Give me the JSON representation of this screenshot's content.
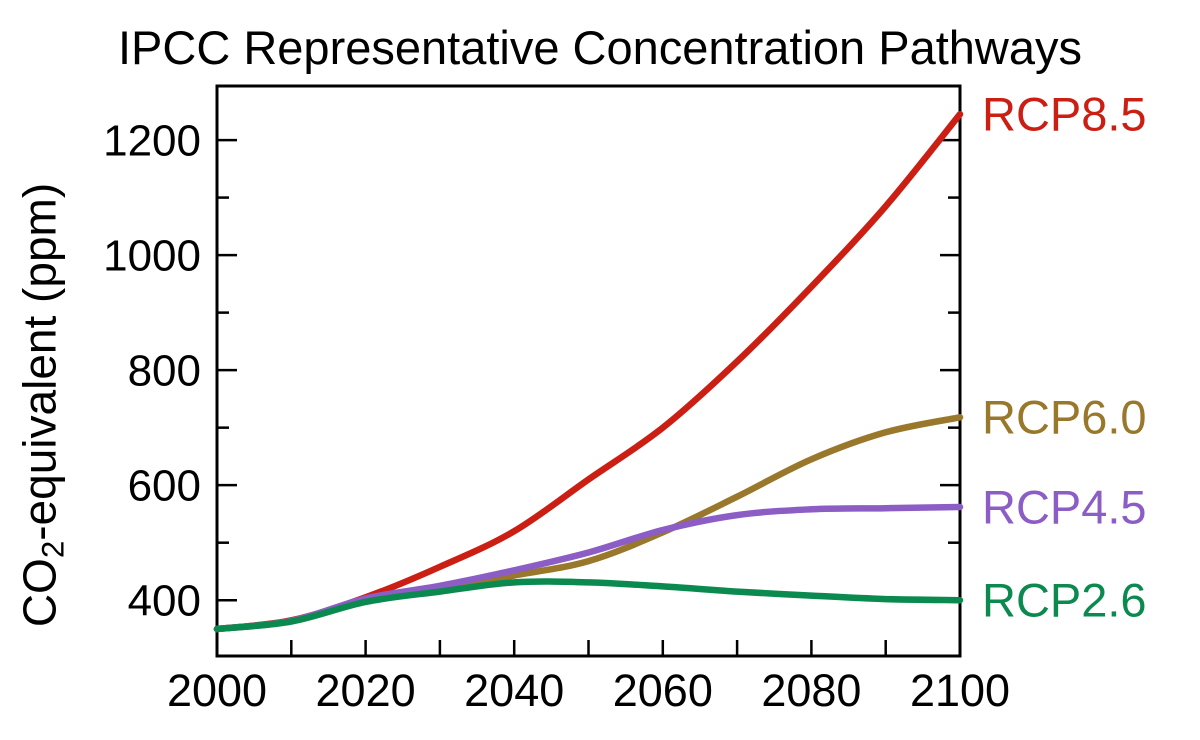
{
  "title": "IPCC Representative Concentration Pathways",
  "y_axis": {
    "label_prefix": "CO",
    "label_sub": "2",
    "label_suffix": "-equivalent (ppm)"
  },
  "chart_data": {
    "type": "line",
    "title": "IPCC Representative Concentration Pathways",
    "xlabel": "",
    "ylabel": "CO2-equivalent (ppm)",
    "x": [
      2000,
      2010,
      2020,
      2030,
      2040,
      2050,
      2060,
      2070,
      2080,
      2090,
      2100
    ],
    "series": [
      {
        "name": "RCP8.5",
        "color": "#cc1f14",
        "values": [
          350,
          365,
          405,
          458,
          520,
          610,
          700,
          815,
          945,
          1085,
          1245
        ]
      },
      {
        "name": "RCP6.0",
        "color": "#99782b",
        "values": [
          350,
          364,
          400,
          420,
          443,
          468,
          518,
          580,
          645,
          692,
          718
        ]
      },
      {
        "name": "RCP4.5",
        "color": "#8c5dc4",
        "values": [
          350,
          364,
          403,
          425,
          452,
          483,
          522,
          548,
          558,
          560,
          562
        ]
      },
      {
        "name": "RCP2.6",
        "color": "#0b8a4f",
        "values": [
          350,
          363,
          397,
          415,
          431,
          431,
          424,
          415,
          408,
          402,
          400
        ]
      }
    ],
    "xlim": [
      2000,
      2100
    ],
    "ylim": [
      303,
      1294
    ],
    "x_tick_labels": [
      2000,
      2020,
      2040,
      2060,
      2080,
      2100
    ],
    "x_ticks": [
      2010,
      2020,
      2030,
      2040,
      2050,
      2060,
      2070,
      2080,
      2090
    ],
    "y_major_ticks": [
      400,
      600,
      800,
      1000,
      1200
    ],
    "y_minor_ticks": [
      500,
      700,
      900,
      1100
    ],
    "grid": false,
    "legend_position": "right, aligned to line endpoints",
    "axis_color": "#000000",
    "background": "#ffffff"
  }
}
